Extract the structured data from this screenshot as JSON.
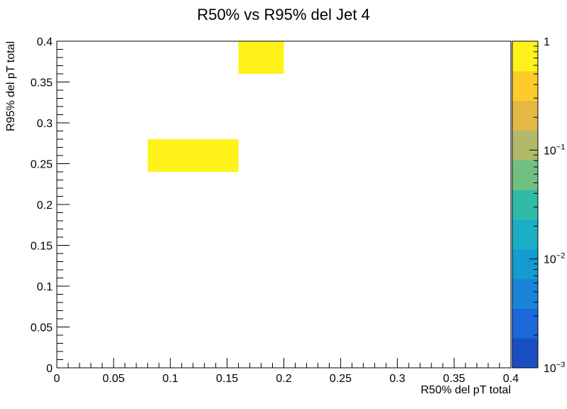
{
  "chart_data": {
    "type": "heatmap",
    "title": "R50% vs R95% del Jet 4",
    "xlabel": "R50% del pT total",
    "ylabel": "R95% del pT total",
    "xlim": [
      0,
      0.4
    ],
    "ylim": [
      0,
      0.4
    ],
    "x_ticks": [
      "0",
      "0.05",
      "0.1",
      "0.15",
      "0.2",
      "0.25",
      "0.3",
      "0.35",
      "0.4"
    ],
    "y_ticks": [
      "0",
      "0.05",
      "0.1",
      "0.15",
      "0.2",
      "0.25",
      "0.3",
      "0.35",
      "0.4"
    ],
    "cells": [
      {
        "x0": 0.08,
        "x1": 0.16,
        "y0": 0.24,
        "y1": 0.28,
        "value": 1
      },
      {
        "x0": 0.16,
        "x1": 0.2,
        "y0": 0.36,
        "y1": 0.4,
        "value": 1
      }
    ],
    "z_scale": "log",
    "zlim": [
      0.001,
      1
    ],
    "colorbar_labels": [
      {
        "value": 1,
        "base": "1",
        "exp": ""
      },
      {
        "value": 0.1,
        "base": "10",
        "exp": "−1"
      },
      {
        "value": 0.01,
        "base": "10",
        "exp": "−2"
      },
      {
        "value": 0.001,
        "base": "10",
        "exp": "−3"
      }
    ],
    "palette": [
      "#1a4fc4",
      "#1a68da",
      "#1a84d6",
      "#149cd0",
      "#1aafc4",
      "#30baa8",
      "#72c080",
      "#b0ba6a",
      "#e3b944",
      "#fecb2b",
      "#fef21a"
    ],
    "grid": false,
    "legend": "colorbar-right"
  }
}
